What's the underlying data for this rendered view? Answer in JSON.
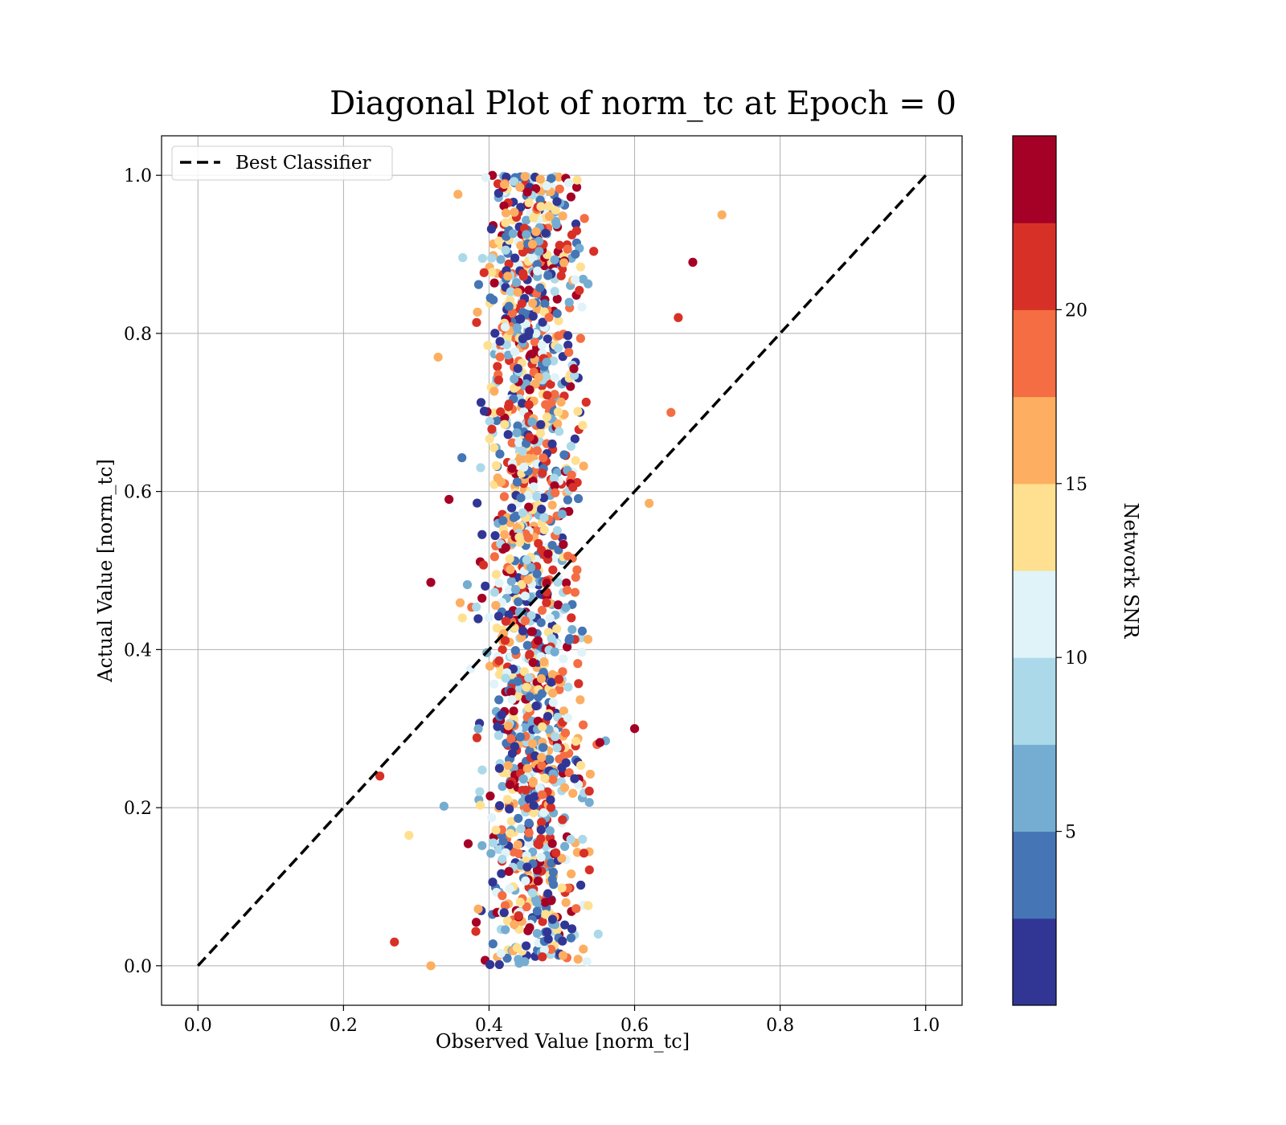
{
  "chart_data": {
    "type": "scatter",
    "title": "Diagonal Plot of norm_tc at Epoch = 0",
    "xlabel": "Observed Value [norm_tc]",
    "ylabel": "Actual Value [norm_tc]",
    "xlim": [
      -0.05,
      1.05
    ],
    "ylim": [
      -0.05,
      1.05
    ],
    "x_ticks": [
      "0.0",
      "0.2",
      "0.4",
      "0.6",
      "0.8",
      "1.0"
    ],
    "y_ticks": [
      "0.0",
      "0.2",
      "0.4",
      "0.6",
      "0.8",
      "1.0"
    ],
    "grid": true,
    "legend": {
      "placement": "upper-left",
      "entries": [
        "Best Classifier"
      ]
    },
    "reference_line": {
      "name": "Best Classifier",
      "style": "dashed",
      "color": "#000000",
      "from": [
        0.0,
        0.0
      ],
      "to": [
        1.0,
        1.0
      ]
    },
    "colorbar": {
      "label": "Network SNR",
      "range": [
        0,
        25
      ],
      "ticks": [
        "5",
        "10",
        "15",
        "20"
      ],
      "colors": [
        "#313695",
        "#4575b4",
        "#74add1",
        "#abd9e9",
        "#e0f3f8",
        "#fee090",
        "#fdae61",
        "#f46d43",
        "#d73027",
        "#a50026"
      ]
    },
    "point_distribution": {
      "count": 1500,
      "x_center": 0.46,
      "x_spread": 0.055,
      "y_range": [
        0.0,
        1.0
      ],
      "snr_range": [
        0,
        25
      ]
    },
    "notable_points": [
      {
        "x": 0.72,
        "y": 0.95,
        "snr": 16
      },
      {
        "x": 0.68,
        "y": 0.89,
        "snr": 24
      },
      {
        "x": 0.66,
        "y": 0.82,
        "snr": 21
      },
      {
        "x": 0.65,
        "y": 0.7,
        "snr": 18
      },
      {
        "x": 0.62,
        "y": 0.585,
        "snr": 16
      },
      {
        "x": 0.6,
        "y": 0.3,
        "snr": 24
      },
      {
        "x": 0.55,
        "y": 0.04,
        "snr": 9
      },
      {
        "x": 0.33,
        "y": 0.77,
        "snr": 17
      },
      {
        "x": 0.345,
        "y": 0.59,
        "snr": 24
      },
      {
        "x": 0.32,
        "y": 0.485,
        "snr": 24
      },
      {
        "x": 0.25,
        "y": 0.24,
        "snr": 21
      },
      {
        "x": 0.29,
        "y": 0.165,
        "snr": 14
      },
      {
        "x": 0.27,
        "y": 0.03,
        "snr": 21
      },
      {
        "x": 0.32,
        "y": 0.0,
        "snr": 17
      }
    ]
  }
}
